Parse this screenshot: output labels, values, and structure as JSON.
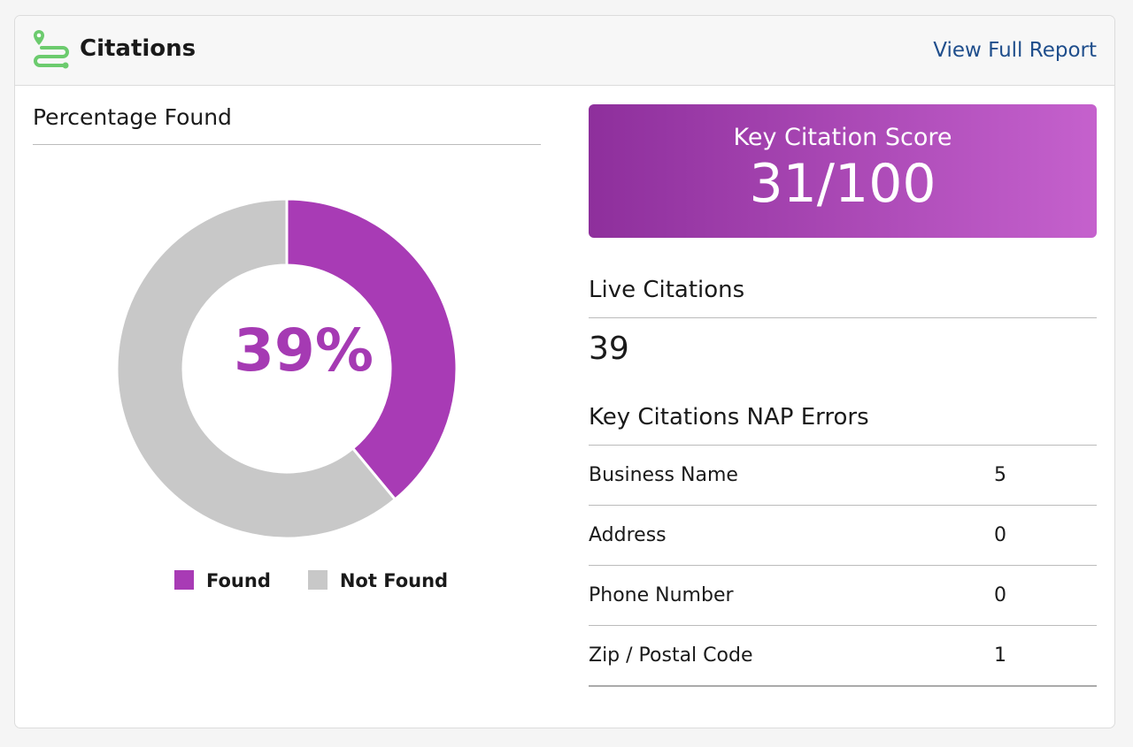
{
  "header": {
    "title": "Citations",
    "link": "View Full Report",
    "icon": "route-pin-icon"
  },
  "colors": {
    "found": "#a83bb5",
    "not_found": "#c8c8c8",
    "accent": "#a53ab3"
  },
  "left": {
    "title": "Percentage Found",
    "center_label": "39%",
    "legend": [
      "Found",
      "Not Found"
    ]
  },
  "chart_data": {
    "type": "pie",
    "variant": "donut",
    "categories": [
      "Found",
      "Not Found"
    ],
    "values": [
      39,
      61
    ],
    "center_label": "39%",
    "legend_placement": "bottom"
  },
  "right": {
    "score_label": "Key Citation Score",
    "score_value": "31/100",
    "live_label": "Live Citations",
    "live_value": "39",
    "nap_label": "Key Citations NAP Errors",
    "nap_rows": [
      {
        "label": "Business Name",
        "value": "5"
      },
      {
        "label": "Address",
        "value": "0"
      },
      {
        "label": "Phone Number",
        "value": "0"
      },
      {
        "label": "Zip / Postal Code",
        "value": "1"
      }
    ]
  }
}
